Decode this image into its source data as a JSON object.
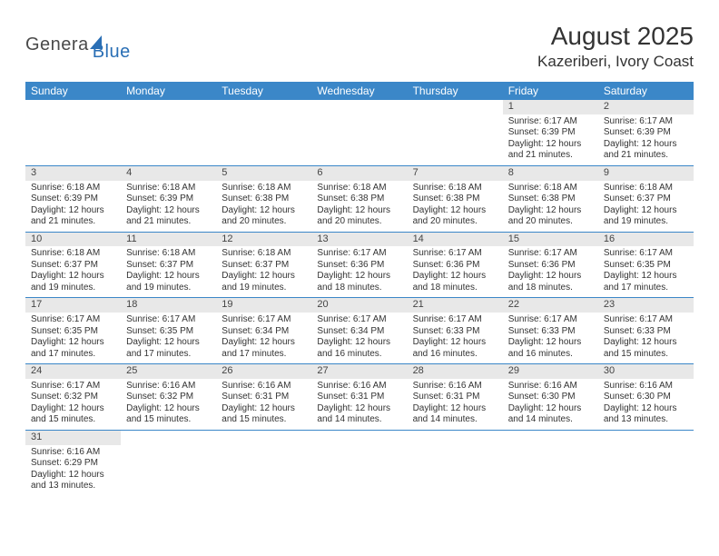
{
  "logo": {
    "gen": "Genera",
    "blue": "Blue",
    "sail_color": "#2a6fb5"
  },
  "title": "August 2025",
  "location": "Kazeriberi, Ivory Coast",
  "colors": {
    "header_bg": "#3b87c8",
    "header_text": "#ffffff",
    "daynum_bg": "#e8e8e8",
    "row_border": "#3b87c8",
    "text": "#333333"
  },
  "day_headers": [
    "Sunday",
    "Monday",
    "Tuesday",
    "Wednesday",
    "Thursday",
    "Friday",
    "Saturday"
  ],
  "weeks": [
    [
      null,
      null,
      null,
      null,
      null,
      {
        "n": "1",
        "sunrise": "6:17 AM",
        "sunset": "6:39 PM",
        "dlh": "12",
        "dlm": "21"
      },
      {
        "n": "2",
        "sunrise": "6:17 AM",
        "sunset": "6:39 PM",
        "dlh": "12",
        "dlm": "21"
      }
    ],
    [
      {
        "n": "3",
        "sunrise": "6:18 AM",
        "sunset": "6:39 PM",
        "dlh": "12",
        "dlm": "21"
      },
      {
        "n": "4",
        "sunrise": "6:18 AM",
        "sunset": "6:39 PM",
        "dlh": "12",
        "dlm": "21"
      },
      {
        "n": "5",
        "sunrise": "6:18 AM",
        "sunset": "6:38 PM",
        "dlh": "12",
        "dlm": "20"
      },
      {
        "n": "6",
        "sunrise": "6:18 AM",
        "sunset": "6:38 PM",
        "dlh": "12",
        "dlm": "20"
      },
      {
        "n": "7",
        "sunrise": "6:18 AM",
        "sunset": "6:38 PM",
        "dlh": "12",
        "dlm": "20"
      },
      {
        "n": "8",
        "sunrise": "6:18 AM",
        "sunset": "6:38 PM",
        "dlh": "12",
        "dlm": "20"
      },
      {
        "n": "9",
        "sunrise": "6:18 AM",
        "sunset": "6:37 PM",
        "dlh": "12",
        "dlm": "19"
      }
    ],
    [
      {
        "n": "10",
        "sunrise": "6:18 AM",
        "sunset": "6:37 PM",
        "dlh": "12",
        "dlm": "19"
      },
      {
        "n": "11",
        "sunrise": "6:18 AM",
        "sunset": "6:37 PM",
        "dlh": "12",
        "dlm": "19"
      },
      {
        "n": "12",
        "sunrise": "6:18 AM",
        "sunset": "6:37 PM",
        "dlh": "12",
        "dlm": "19"
      },
      {
        "n": "13",
        "sunrise": "6:17 AM",
        "sunset": "6:36 PM",
        "dlh": "12",
        "dlm": "18"
      },
      {
        "n": "14",
        "sunrise": "6:17 AM",
        "sunset": "6:36 PM",
        "dlh": "12",
        "dlm": "18"
      },
      {
        "n": "15",
        "sunrise": "6:17 AM",
        "sunset": "6:36 PM",
        "dlh": "12",
        "dlm": "18"
      },
      {
        "n": "16",
        "sunrise": "6:17 AM",
        "sunset": "6:35 PM",
        "dlh": "12",
        "dlm": "17"
      }
    ],
    [
      {
        "n": "17",
        "sunrise": "6:17 AM",
        "sunset": "6:35 PM",
        "dlh": "12",
        "dlm": "17"
      },
      {
        "n": "18",
        "sunrise": "6:17 AM",
        "sunset": "6:35 PM",
        "dlh": "12",
        "dlm": "17"
      },
      {
        "n": "19",
        "sunrise": "6:17 AM",
        "sunset": "6:34 PM",
        "dlh": "12",
        "dlm": "17"
      },
      {
        "n": "20",
        "sunrise": "6:17 AM",
        "sunset": "6:34 PM",
        "dlh": "12",
        "dlm": "16"
      },
      {
        "n": "21",
        "sunrise": "6:17 AM",
        "sunset": "6:33 PM",
        "dlh": "12",
        "dlm": "16"
      },
      {
        "n": "22",
        "sunrise": "6:17 AM",
        "sunset": "6:33 PM",
        "dlh": "12",
        "dlm": "16"
      },
      {
        "n": "23",
        "sunrise": "6:17 AM",
        "sunset": "6:33 PM",
        "dlh": "12",
        "dlm": "15"
      }
    ],
    [
      {
        "n": "24",
        "sunrise": "6:17 AM",
        "sunset": "6:32 PM",
        "dlh": "12",
        "dlm": "15"
      },
      {
        "n": "25",
        "sunrise": "6:16 AM",
        "sunset": "6:32 PM",
        "dlh": "12",
        "dlm": "15"
      },
      {
        "n": "26",
        "sunrise": "6:16 AM",
        "sunset": "6:31 PM",
        "dlh": "12",
        "dlm": "15"
      },
      {
        "n": "27",
        "sunrise": "6:16 AM",
        "sunset": "6:31 PM",
        "dlh": "12",
        "dlm": "14"
      },
      {
        "n": "28",
        "sunrise": "6:16 AM",
        "sunset": "6:31 PM",
        "dlh": "12",
        "dlm": "14"
      },
      {
        "n": "29",
        "sunrise": "6:16 AM",
        "sunset": "6:30 PM",
        "dlh": "12",
        "dlm": "14"
      },
      {
        "n": "30",
        "sunrise": "6:16 AM",
        "sunset": "6:30 PM",
        "dlh": "12",
        "dlm": "13"
      }
    ],
    [
      {
        "n": "31",
        "sunrise": "6:16 AM",
        "sunset": "6:29 PM",
        "dlh": "12",
        "dlm": "13"
      },
      null,
      null,
      null,
      null,
      null,
      null
    ]
  ],
  "labels": {
    "sunrise": "Sunrise: ",
    "sunset": "Sunset: ",
    "daylight_prefix": "Daylight: ",
    "hours_word": " hours",
    "and_word": "and ",
    "minutes_word": " minutes."
  }
}
